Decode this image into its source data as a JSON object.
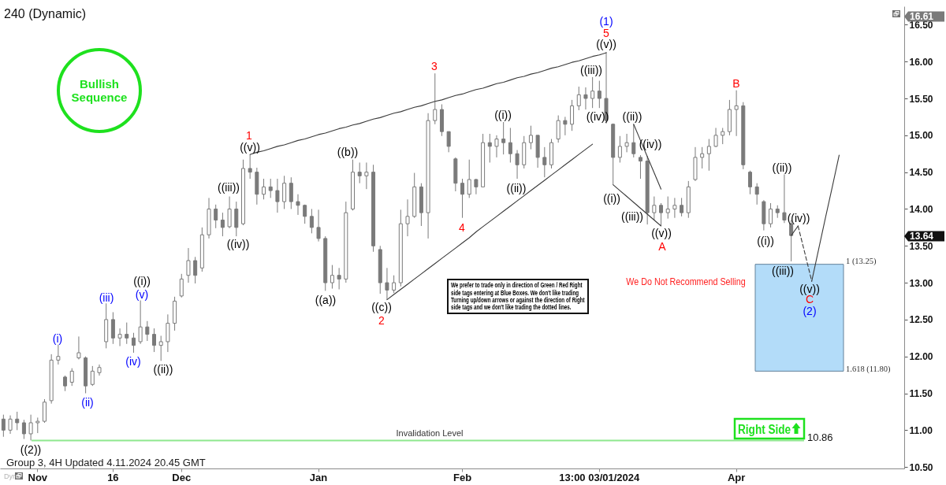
{
  "chart_data": {
    "type": "candlestick",
    "title": "240 (Dynamic)",
    "color": "#7a7a7a",
    "categories": [
      null,
      null,
      null,
      null,
      null,
      "Nov",
      null,
      null,
      null,
      null,
      null,
      null,
      null,
      null,
      null,
      null,
      "16",
      null,
      null,
      null,
      null,
      null,
      null,
      null,
      null,
      null,
      "Dec",
      null,
      null,
      null,
      null,
      null,
      null,
      null,
      null,
      null,
      null,
      null,
      null,
      null,
      null,
      null,
      null,
      null,
      null,
      null,
      "Jan",
      null,
      null,
      null,
      null,
      null,
      null,
      null,
      null,
      null,
      null,
      null,
      null,
      null,
      null,
      null,
      null,
      null,
      null,
      null,
      null,
      "Feb",
      null,
      null,
      null,
      null,
      null,
      null,
      null,
      null,
      null,
      null,
      null,
      null,
      null,
      null,
      null,
      null,
      null,
      null,
      null,
      "13:00 03/01/2024",
      null,
      null,
      null,
      null,
      null,
      null,
      null,
      null,
      null,
      null,
      null,
      null,
      null,
      null,
      null,
      null,
      null,
      null,
      null,
      "Apr",
      null,
      null,
      null,
      null,
      null,
      null,
      null,
      null,
      null,
      null,
      null,
      null,
      null,
      null,
      null,
      null,
      null,
      null,
      null,
      null,
      null,
      null,
      null,
      null
    ],
    "ohlc": [
      [
        11.15,
        11.21,
        10.91,
        11.0
      ],
      [
        11.0,
        11.2,
        10.95,
        11.15
      ],
      [
        11.15,
        11.25,
        11.0,
        11.1
      ],
      [
        11.1,
        11.14,
        10.88,
        10.95
      ],
      [
        10.95,
        11.21,
        10.86,
        11.1
      ],
      [
        11.1,
        11.17,
        10.96,
        11.12
      ],
      [
        11.12,
        11.42,
        11.1,
        11.38
      ],
      [
        11.4,
        12.03,
        11.36,
        11.95
      ],
      [
        11.95,
        12.16,
        11.89,
        12.0
      ],
      [
        11.72,
        11.74,
        11.53,
        11.6
      ],
      [
        11.65,
        11.84,
        11.6,
        11.8
      ],
      [
        11.98,
        12.27,
        11.96,
        12.05
      ],
      [
        11.98,
        12.0,
        11.5,
        11.6
      ],
      [
        11.62,
        11.87,
        11.6,
        11.8
      ],
      [
        11.78,
        11.89,
        11.74,
        11.85
      ],
      [
        12.2,
        12.72,
        12.11,
        12.5
      ],
      [
        12.5,
        12.6,
        12.17,
        12.25
      ],
      [
        12.25,
        12.38,
        12.14,
        12.3
      ],
      [
        12.3,
        12.46,
        12.17,
        12.25
      ],
      [
        12.25,
        12.32,
        12.05,
        12.15
      ],
      [
        12.2,
        12.76,
        12.17,
        12.4
      ],
      [
        12.4,
        12.48,
        12.21,
        12.3
      ],
      [
        12.3,
        12.38,
        12.06,
        12.15
      ],
      [
        12.15,
        12.28,
        11.94,
        12.2
      ],
      [
        12.2,
        12.57,
        12.06,
        12.45
      ],
      [
        12.45,
        12.81,
        12.35,
        12.75
      ],
      [
        12.82,
        13.12,
        12.8,
        13.05
      ],
      [
        13.1,
        13.47,
        13.0,
        13.3
      ],
      [
        13.3,
        13.35,
        12.99,
        13.1
      ],
      [
        13.2,
        13.75,
        13.15,
        13.65
      ],
      [
        13.65,
        14.15,
        13.6,
        14.0
      ],
      [
        14.0,
        14.06,
        13.74,
        13.85
      ],
      [
        13.85,
        13.95,
        13.63,
        13.75
      ],
      [
        13.76,
        14.17,
        13.74,
        14.0
      ],
      [
        14.0,
        14.1,
        13.63,
        13.75
      ],
      [
        13.8,
        14.67,
        13.78,
        14.55
      ],
      [
        14.55,
        14.74,
        14.41,
        14.5
      ],
      [
        14.5,
        14.56,
        14.06,
        14.2
      ],
      [
        14.2,
        14.41,
        14.13,
        14.3
      ],
      [
        14.3,
        14.41,
        14.15,
        14.25
      ],
      [
        14.25,
        14.41,
        13.95,
        14.1
      ],
      [
        14.1,
        14.45,
        14.0,
        14.35
      ],
      [
        14.35,
        14.43,
        14.0,
        14.1
      ],
      [
        14.1,
        14.2,
        13.92,
        14.05
      ],
      [
        14.05,
        14.06,
        13.8,
        13.9
      ],
      [
        13.9,
        14.0,
        13.67,
        13.75
      ],
      [
        13.75,
        13.99,
        13.56,
        13.6
      ],
      [
        13.6,
        13.63,
        12.89,
        13.0
      ],
      [
        13.0,
        13.24,
        12.92,
        13.1
      ],
      [
        13.1,
        13.2,
        12.91,
        13.05
      ],
      [
        13.05,
        14.1,
        13.0,
        13.95
      ],
      [
        14.0,
        14.67,
        13.98,
        14.5
      ],
      [
        14.5,
        14.63,
        14.35,
        14.45
      ],
      [
        14.45,
        14.63,
        14.27,
        14.5
      ],
      [
        14.5,
        14.6,
        13.42,
        13.5
      ],
      [
        13.45,
        13.5,
        12.85,
        13.0
      ],
      [
        13.0,
        13.2,
        12.77,
        12.9
      ],
      [
        12.9,
        13.1,
        12.86,
        13.0
      ],
      [
        13.0,
        13.99,
        12.95,
        13.8
      ],
      [
        13.8,
        14.13,
        13.63,
        13.9
      ],
      [
        13.9,
        14.49,
        13.88,
        14.3
      ],
      [
        14.3,
        14.35,
        13.77,
        13.95
      ],
      [
        13.95,
        15.3,
        13.6,
        15.2
      ],
      [
        15.2,
        15.84,
        15.15,
        15.35
      ],
      [
        15.35,
        15.42,
        14.99,
        15.05
      ],
      [
        15.05,
        15.05,
        14.77,
        14.85
      ],
      [
        14.68,
        14.7,
        14.24,
        14.35
      ],
      [
        14.35,
        14.41,
        13.88,
        14.2
      ],
      [
        14.2,
        14.67,
        14.15,
        14.4
      ],
      [
        14.4,
        14.41,
        14.2,
        14.3
      ],
      [
        14.3,
        15.02,
        14.3,
        14.9
      ],
      [
        14.9,
        15.02,
        14.63,
        14.85
      ],
      [
        14.85,
        15.0,
        14.7,
        14.95
      ],
      [
        14.95,
        15.18,
        14.74,
        14.9
      ],
      [
        14.9,
        15.1,
        14.63,
        14.75
      ],
      [
        14.75,
        14.8,
        14.41,
        14.6
      ],
      [
        14.6,
        14.99,
        14.55,
        14.9
      ],
      [
        14.9,
        15.13,
        14.81,
        15.0
      ],
      [
        15.0,
        15.0,
        14.56,
        14.7
      ],
      [
        14.7,
        14.84,
        14.43,
        14.6
      ],
      [
        14.6,
        14.95,
        14.55,
        14.9
      ],
      [
        14.95,
        15.27,
        14.9,
        15.2
      ],
      [
        15.2,
        15.25,
        15.0,
        15.15
      ],
      [
        15.15,
        15.48,
        15.06,
        15.4
      ],
      [
        15.4,
        15.66,
        15.34,
        15.55
      ],
      [
        15.55,
        15.65,
        15.35,
        15.5
      ],
      [
        15.5,
        15.79,
        15.37,
        15.6
      ],
      [
        15.6,
        15.74,
        15.37,
        15.5
      ],
      [
        15.5,
        16.13,
        15.16,
        15.2
      ],
      [
        15.15,
        15.16,
        14.33,
        14.7
      ],
      [
        14.7,
        14.99,
        14.63,
        14.85
      ],
      [
        14.85,
        15.02,
        14.77,
        14.9
      ],
      [
        14.9,
        15.15,
        14.7,
        14.75
      ],
      [
        14.7,
        14.73,
        14.41,
        14.65
      ],
      [
        14.65,
        14.72,
        13.79,
        13.95
      ],
      [
        13.95,
        14.17,
        13.85,
        14.05
      ],
      [
        14.05,
        14.08,
        13.77,
        13.95
      ],
      [
        13.95,
        14.17,
        13.87,
        14.0
      ],
      [
        14.0,
        14.15,
        13.88,
        14.05
      ],
      [
        14.05,
        14.15,
        13.9,
        13.95
      ],
      [
        13.95,
        14.38,
        13.88,
        14.3
      ],
      [
        14.4,
        14.84,
        14.38,
        14.7
      ],
      [
        14.7,
        14.84,
        14.55,
        14.75
      ],
      [
        14.75,
        14.95,
        14.52,
        14.85
      ],
      [
        14.85,
        15.1,
        14.84,
        15.0
      ],
      [
        15.0,
        15.1,
        14.88,
        15.05
      ],
      [
        15.05,
        15.48,
        15.0,
        15.35
      ],
      [
        15.35,
        15.61,
        14.99,
        15.4
      ],
      [
        15.4,
        15.45,
        14.54,
        14.6
      ],
      [
        14.5,
        14.52,
        14.2,
        14.3
      ],
      [
        14.3,
        14.35,
        14.06,
        14.2
      ],
      [
        14.1,
        14.12,
        13.71,
        13.8
      ],
      [
        13.8,
        14.08,
        13.75,
        14.0
      ],
      [
        14.0,
        14.05,
        13.88,
        13.95
      ],
      [
        13.95,
        14.47,
        13.81,
        13.85
      ],
      [
        13.8,
        13.85,
        13.29,
        13.64
      ],
      null,
      null,
      null,
      null,
      null,
      null,
      null,
      null,
      null,
      null,
      null,
      null,
      null,
      null,
      null,
      null
    ],
    "series": [
      {
        "type": "line",
        "color": "#3a3a3a",
        "values": [
          null,
          null,
          null,
          null,
          null,
          null,
          null,
          null,
          null,
          null,
          null,
          null,
          null,
          null,
          null,
          null,
          null,
          null,
          null,
          null,
          null,
          null,
          null,
          null,
          null,
          null,
          null,
          null,
          null,
          null,
          null,
          null,
          null,
          null,
          null,
          null,
          14.74,
          14.77,
          14.79,
          14.82,
          14.85,
          14.87,
          14.9,
          14.93,
          14.95,
          14.98,
          15.01,
          15.03,
          15.06,
          15.09,
          15.11,
          15.14,
          15.16,
          15.19,
          15.22,
          15.24,
          15.27,
          15.3,
          15.32,
          15.35,
          15.38,
          15.4,
          15.43,
          15.46,
          15.48,
          15.51,
          15.54,
          15.56,
          15.59,
          15.62,
          15.64,
          15.67,
          15.7,
          15.72,
          15.75,
          15.78,
          15.8,
          15.83,
          15.85,
          15.88,
          15.91,
          15.93,
          15.96,
          15.99,
          16.01,
          16.04,
          16.07,
          16.09,
          16.12,
          null,
          null,
          null,
          null,
          null,
          null,
          null,
          null,
          null,
          null,
          null,
          null,
          null,
          null,
          null,
          null,
          null,
          null,
          null,
          null,
          null,
          null,
          null,
          null,
          null,
          null,
          null,
          null,
          null,
          null,
          null,
          null,
          null,
          null,
          null,
          null,
          null,
          null,
          null,
          null,
          null,
          null,
          null
        ]
      },
      {
        "type": "line",
        "color": "#3a3a3a",
        "values": [
          null,
          null,
          null,
          null,
          null,
          null,
          null,
          null,
          null,
          null,
          null,
          null,
          null,
          null,
          null,
          null,
          null,
          null,
          null,
          null,
          null,
          null,
          null,
          null,
          null,
          null,
          null,
          null,
          null,
          null,
          null,
          null,
          null,
          null,
          null,
          null,
          null,
          null,
          null,
          null,
          null,
          null,
          null,
          null,
          null,
          null,
          null,
          null,
          null,
          null,
          null,
          null,
          null,
          null,
          null,
          null,
          12.77,
          12.84,
          12.91,
          12.98,
          13.05,
          13.12,
          13.19,
          13.26,
          13.33,
          13.4,
          13.47,
          13.54,
          13.61,
          13.69,
          13.76,
          13.83,
          13.9,
          13.97,
          14.04,
          14.11,
          14.18,
          14.25,
          14.32,
          14.39,
          14.46,
          14.53,
          14.6,
          14.67,
          14.74,
          14.81,
          14.88,
          null,
          null,
          null,
          null,
          null,
          null,
          null,
          null,
          null,
          null,
          null,
          null,
          null,
          null,
          null,
          null,
          null,
          null,
          null,
          null,
          null,
          null,
          null,
          null,
          null,
          null,
          null,
          null,
          null,
          null,
          null,
          null,
          null,
          null,
          null,
          null,
          null,
          null,
          null,
          null,
          null,
          null,
          null,
          null,
          null
        ]
      },
      {
        "type": "line",
        "color": "#3a3a3a",
        "values": [
          null,
          null,
          null,
          null,
          null,
          null,
          null,
          null,
          null,
          null,
          null,
          null,
          null,
          null,
          null,
          null,
          null,
          null,
          null,
          null,
          null,
          null,
          null,
          null,
          null,
          null,
          null,
          null,
          null,
          null,
          null,
          null,
          null,
          null,
          null,
          null,
          null,
          null,
          null,
          null,
          null,
          null,
          null,
          null,
          null,
          null,
          null,
          null,
          null,
          null,
          null,
          null,
          null,
          null,
          null,
          null,
          null,
          null,
          null,
          null,
          null,
          null,
          null,
          null,
          null,
          null,
          null,
          null,
          null,
          null,
          null,
          null,
          null,
          null,
          null,
          null,
          null,
          null,
          null,
          null,
          null,
          null,
          null,
          null,
          null,
          null,
          null,
          null,
          null,
          14.33,
          14.25,
          14.17,
          14.09,
          14.01,
          13.93,
          13.85,
          13.77,
          null,
          null,
          null,
          null,
          null,
          null,
          null,
          null,
          null,
          null,
          null,
          null,
          null,
          null,
          null,
          null,
          null,
          null,
          null,
          null,
          null,
          null,
          null,
          null,
          null,
          null,
          null,
          null,
          null,
          null,
          null,
          null,
          null,
          null,
          null
        ]
      },
      {
        "type": "line",
        "color": "#3a3a3a",
        "values": [
          null,
          null,
          null,
          null,
          null,
          null,
          null,
          null,
          null,
          null,
          null,
          null,
          null,
          null,
          null,
          null,
          null,
          null,
          null,
          null,
          null,
          null,
          null,
          null,
          null,
          null,
          null,
          null,
          null,
          null,
          null,
          null,
          null,
          null,
          null,
          null,
          null,
          null,
          null,
          null,
          null,
          null,
          null,
          null,
          null,
          null,
          null,
          null,
          null,
          null,
          null,
          null,
          null,
          null,
          null,
          null,
          null,
          null,
          null,
          null,
          null,
          null,
          null,
          null,
          null,
          null,
          null,
          null,
          null,
          null,
          null,
          null,
          null,
          null,
          null,
          null,
          null,
          null,
          null,
          null,
          null,
          null,
          null,
          null,
          null,
          null,
          null,
          null,
          null,
          null,
          null,
          null,
          15.15,
          14.93,
          14.71,
          14.49,
          14.27,
          null,
          null,
          null,
          null,
          null,
          null,
          null,
          null,
          null,
          null,
          null,
          null,
          null,
          null,
          null,
          null,
          null,
          null,
          null,
          null,
          null,
          null,
          null,
          null,
          null,
          null,
          null,
          null,
          null,
          null,
          null,
          null,
          null,
          null,
          null
        ]
      },
      {
        "type": "line",
        "color": "#3a3a3a",
        "values": [
          null,
          null,
          null,
          null,
          null,
          null,
          null,
          null,
          null,
          null,
          null,
          null,
          null,
          null,
          null,
          null,
          null,
          null,
          null,
          null,
          null,
          null,
          null,
          null,
          null,
          null,
          null,
          null,
          null,
          null,
          null,
          null,
          null,
          null,
          null,
          null,
          null,
          null,
          null,
          null,
          null,
          null,
          null,
          null,
          null,
          null,
          null,
          null,
          null,
          null,
          null,
          null,
          null,
          null,
          null,
          null,
          null,
          null,
          null,
          null,
          null,
          null,
          null,
          null,
          null,
          null,
          null,
          null,
          null,
          null,
          null,
          null,
          null,
          null,
          null,
          null,
          null,
          null,
          null,
          null,
          null,
          null,
          null,
          null,
          null,
          null,
          null,
          null,
          null,
          null,
          null,
          null,
          null,
          null,
          null,
          null,
          null,
          null,
          null,
          null,
          null,
          null,
          null,
          null,
          null,
          null,
          null,
          null,
          null,
          null,
          null,
          null,
          null,
          null,
          null,
          13.64,
          13.77,
          null,
          null,
          null,
          null,
          null,
          null,
          null,
          null,
          null,
          null,
          null,
          null,
          null,
          null,
          null
        ]
      },
      {
        "type": "line",
        "color": "#3a3a3a",
        "line_style": "dashed",
        "values": [
          null,
          null,
          null,
          null,
          null,
          null,
          null,
          null,
          null,
          null,
          null,
          null,
          null,
          null,
          null,
          null,
          null,
          null,
          null,
          null,
          null,
          null,
          null,
          null,
          null,
          null,
          null,
          null,
          null,
          null,
          null,
          null,
          null,
          null,
          null,
          null,
          null,
          null,
          null,
          null,
          null,
          null,
          null,
          null,
          null,
          null,
          null,
          null,
          null,
          null,
          null,
          null,
          null,
          null,
          null,
          null,
          null,
          null,
          null,
          null,
          null,
          null,
          null,
          null,
          null,
          null,
          null,
          null,
          null,
          null,
          null,
          null,
          null,
          null,
          null,
          null,
          null,
          null,
          null,
          null,
          null,
          null,
          null,
          null,
          null,
          null,
          null,
          null,
          null,
          null,
          null,
          null,
          null,
          null,
          null,
          null,
          null,
          null,
          null,
          null,
          null,
          null,
          null,
          null,
          null,
          null,
          null,
          null,
          null,
          null,
          null,
          null,
          null,
          null,
          null,
          null,
          13.77,
          13.4,
          13.02,
          null,
          null,
          null,
          null,
          null,
          null,
          null,
          null,
          null,
          null,
          null,
          null,
          null
        ]
      },
      {
        "type": "line",
        "color": "#3a3a3a",
        "values": [
          null,
          null,
          null,
          null,
          null,
          null,
          null,
          null,
          null,
          null,
          null,
          null,
          null,
          null,
          null,
          null,
          null,
          null,
          null,
          null,
          null,
          null,
          null,
          null,
          null,
          null,
          null,
          null,
          null,
          null,
          null,
          null,
          null,
          null,
          null,
          null,
          null,
          null,
          null,
          null,
          null,
          null,
          null,
          null,
          null,
          null,
          null,
          null,
          null,
          null,
          null,
          null,
          null,
          null,
          null,
          null,
          null,
          null,
          null,
          null,
          null,
          null,
          null,
          null,
          null,
          null,
          null,
          null,
          null,
          null,
          null,
          null,
          null,
          null,
          null,
          null,
          null,
          null,
          null,
          null,
          null,
          null,
          null,
          null,
          null,
          null,
          null,
          null,
          null,
          null,
          null,
          null,
          null,
          null,
          null,
          null,
          null,
          null,
          null,
          null,
          null,
          null,
          null,
          null,
          null,
          null,
          null,
          null,
          null,
          null,
          null,
          null,
          null,
          null,
          null,
          null,
          null,
          null,
          13.02,
          13.45,
          13.88,
          14.3,
          14.73,
          null,
          null,
          null,
          null,
          null,
          null,
          null,
          null,
          null
        ]
      }
    ],
    "ylim": [
      10.48,
      16.75
    ],
    "yticks": [
      {
        "value": 10.5,
        "label": "10.50"
      },
      {
        "value": 11,
        "label": "11.00"
      },
      {
        "value": 11.5,
        "label": "11.50"
      },
      {
        "value": 12,
        "label": "12.00"
      },
      {
        "value": 12.5,
        "label": "12.50"
      },
      {
        "value": 13,
        "label": "13.00"
      },
      {
        "value": 13.5,
        "label": "13.50"
      },
      {
        "value": 14,
        "label": "14.00"
      },
      {
        "value": 14.5,
        "label": "14.50"
      },
      {
        "value": 15,
        "label": "15.00"
      },
      {
        "value": 15.5,
        "label": "15.50"
      },
      {
        "value": 16,
        "label": "16.00"
      },
      {
        "value": 16.5,
        "label": "16.50"
      }
    ],
    "ref_lines": [
      {
        "axis": "y",
        "value": 10.86,
        "label": "Invalidation Level",
        "color": "#8ee88e"
      }
    ],
    "bands": [
      {
        "axis": "y",
        "from": 11.8,
        "to": 13.25,
        "color": "#b3dcf9"
      }
    ],
    "annotations": [
      "Group 3, 4H Updated 4.11.2024 20.45 GMT",
      "Bullish Sequence",
      "We prefer to trade only in direction of Green / Red Right side tags entering at Blue Boxes. We don't like trading Turning up/down arrows or against the direction of Right side tags and we don't like trading the dotted lines.",
      "We Do Not Recommend Selling",
      "Right Side",
      "Dyn",
      "16.61",
      "13.64",
      "((2))",
      "(i)",
      "(ii)",
      "(iii)",
      "(iv)",
      "(v)",
      "((i))",
      "((ii))",
      "((iii))",
      "((iv))",
      "((v))",
      "1",
      "((a))",
      "((b))",
      "((c))",
      "2",
      "3",
      "4",
      "((i))",
      "((ii))",
      "((iii))",
      "((iv))",
      "((v))",
      "5",
      "(1)",
      "((i))",
      "((ii))",
      "((iii))",
      "((iv))",
      "((v))",
      "A",
      "B",
      "((i))",
      "((ii))",
      "((iii))",
      "((iv))",
      "((v))",
      "C",
      "(2)",
      "1 (13.25)",
      "1.618 (11.80)",
      "10.86"
    ]
  }
}
